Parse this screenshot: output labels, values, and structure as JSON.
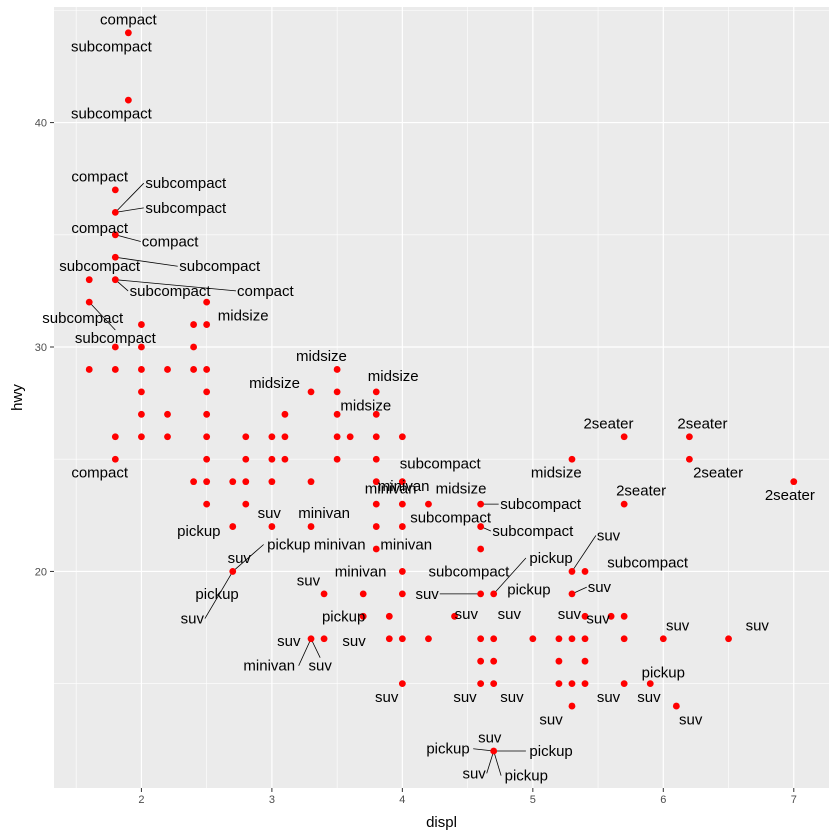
{
  "chart_data": {
    "type": "scatter",
    "title": "",
    "xlabel": "displ",
    "ylabel": "hwy",
    "xlim": [
      1.33,
      7.27
    ],
    "ylim": [
      10.35,
      45.15
    ],
    "x_ticks": [
      "2",
      "3",
      "4",
      "5",
      "6",
      "7"
    ],
    "y_ticks": [
      "20",
      "30",
      "40"
    ],
    "grid": true,
    "legend": "none",
    "colors": {
      "panel": "#ebebeb",
      "grid": "#ffffff",
      "point": "#ff0000",
      "label": "#000000",
      "leader": "#000000"
    },
    "points": [
      [
        1.9,
        44
      ],
      [
        1.9,
        41
      ],
      [
        1.8,
        37
      ],
      [
        1.8,
        36
      ],
      [
        1.8,
        35
      ],
      [
        1.6,
        33
      ],
      [
        1.8,
        34
      ],
      [
        1.8,
        33
      ],
      [
        1.6,
        32
      ],
      [
        2.0,
        31
      ],
      [
        2.5,
        32
      ],
      [
        2.4,
        31
      ],
      [
        2.5,
        31
      ],
      [
        1.6,
        29
      ],
      [
        1.8,
        29
      ],
      [
        2.0,
        29
      ],
      [
        2.2,
        29
      ],
      [
        2.4,
        29
      ],
      [
        2.5,
        29
      ],
      [
        2.4,
        30
      ],
      [
        1.8,
        30
      ],
      [
        2.0,
        30
      ],
      [
        2.0,
        28
      ],
      [
        2.0,
        27
      ],
      [
        2.0,
        26
      ],
      [
        1.8,
        26
      ],
      [
        1.8,
        25
      ],
      [
        2.2,
        27
      ],
      [
        2.2,
        26
      ],
      [
        2.5,
        28
      ],
      [
        2.5,
        27
      ],
      [
        2.5,
        26
      ],
      [
        2.5,
        25
      ],
      [
        2.5,
        24
      ],
      [
        2.5,
        23
      ],
      [
        2.4,
        24
      ],
      [
        2.7,
        24
      ],
      [
        2.7,
        22
      ],
      [
        2.8,
        26
      ],
      [
        2.8,
        25
      ],
      [
        2.8,
        24
      ],
      [
        2.8,
        23
      ],
      [
        3.0,
        26
      ],
      [
        3.0,
        25
      ],
      [
        3.0,
        24
      ],
      [
        3.0,
        22
      ],
      [
        3.1,
        27
      ],
      [
        3.1,
        26
      ],
      [
        3.1,
        25
      ],
      [
        3.3,
        28
      ],
      [
        3.3,
        24
      ],
      [
        3.3,
        22
      ],
      [
        3.5,
        29
      ],
      [
        3.5,
        28
      ],
      [
        3.5,
        27
      ],
      [
        3.5,
        26
      ],
      [
        3.5,
        25
      ],
      [
        3.6,
        26
      ],
      [
        3.8,
        28
      ],
      [
        3.8,
        27
      ],
      [
        3.8,
        26
      ],
      [
        3.8,
        25
      ],
      [
        3.8,
        24
      ],
      [
        3.8,
        23
      ],
      [
        3.8,
        22
      ],
      [
        3.8,
        21
      ],
      [
        4.0,
        26
      ],
      [
        4.0,
        24
      ],
      [
        4.0,
        23
      ],
      [
        4.0,
        22
      ],
      [
        4.0,
        20
      ],
      [
        4.0,
        19
      ],
      [
        4.0,
        17
      ],
      [
        4.0,
        15
      ],
      [
        4.2,
        23
      ],
      [
        4.6,
        23
      ],
      [
        4.6,
        22
      ],
      [
        4.6,
        21
      ],
      [
        4.6,
        19
      ],
      [
        4.6,
        17
      ],
      [
        4.6,
        16
      ],
      [
        4.6,
        15
      ],
      [
        4.7,
        19
      ],
      [
        4.7,
        17
      ],
      [
        4.7,
        16
      ],
      [
        4.7,
        15
      ],
      [
        4.7,
        12
      ],
      [
        5.3,
        25
      ],
      [
        5.3,
        20
      ],
      [
        5.3,
        19
      ],
      [
        5.3,
        17
      ],
      [
        5.3,
        15
      ],
      [
        5.3,
        14
      ],
      [
        5.4,
        20
      ],
      [
        5.4,
        18
      ],
      [
        5.4,
        17
      ],
      [
        5.4,
        16
      ],
      [
        5.4,
        15
      ],
      [
        5.7,
        26
      ],
      [
        5.7,
        23
      ],
      [
        5.7,
        18
      ],
      [
        5.7,
        17
      ],
      [
        5.7,
        15
      ],
      [
        6.2,
        26
      ],
      [
        6.2,
        25
      ],
      [
        7.0,
        24
      ],
      [
        2.7,
        20
      ],
      [
        3.4,
        19
      ],
      [
        3.3,
        17
      ],
      [
        3.4,
        17
      ],
      [
        3.7,
        19
      ],
      [
        3.7,
        18
      ],
      [
        3.9,
        18
      ],
      [
        3.9,
        17
      ],
      [
        4.2,
        17
      ],
      [
        4.4,
        18
      ],
      [
        5.0,
        17
      ],
      [
        5.2,
        17
      ],
      [
        5.2,
        16
      ],
      [
        5.2,
        15
      ],
      [
        5.6,
        18
      ],
      [
        6.0,
        17
      ],
      [
        6.5,
        17
      ],
      [
        6.1,
        14
      ],
      [
        5.9,
        15
      ]
    ],
    "annotations": [
      {
        "text": "compact",
        "x": 1.9,
        "y": 44,
        "lx": 1.9,
        "ly": 44.6,
        "leader": false
      },
      {
        "text": "subcompact",
        "x": 1.9,
        "y": 44,
        "lx": 1.77,
        "ly": 43.4,
        "leader": false
      },
      {
        "text": "subcompact",
        "x": 1.9,
        "y": 41,
        "lx": 1.77,
        "ly": 40.4,
        "leader": false
      },
      {
        "text": "compact",
        "x": 1.8,
        "y": 37,
        "lx": 1.68,
        "ly": 37.6,
        "leader": false
      },
      {
        "text": "subcompact",
        "x": 1.8,
        "y": 36,
        "lx": 2.34,
        "ly": 37.3,
        "leader": true
      },
      {
        "text": "subcompact",
        "x": 1.8,
        "y": 36,
        "lx": 2.34,
        "ly": 36.2,
        "leader": true
      },
      {
        "text": "compact",
        "x": 1.8,
        "y": 35,
        "lx": 1.68,
        "ly": 35.3,
        "leader": false
      },
      {
        "text": "compact",
        "x": 1.8,
        "y": 35,
        "lx": 2.22,
        "ly": 34.7,
        "leader": true
      },
      {
        "text": "subcompact",
        "x": 1.8,
        "y": 34,
        "lx": 1.68,
        "ly": 33.6,
        "leader": false
      },
      {
        "text": "subcompact",
        "x": 1.8,
        "y": 34,
        "lx": 2.6,
        "ly": 33.6,
        "leader": true
      },
      {
        "text": "subcompact",
        "x": 1.8,
        "y": 33,
        "lx": 2.22,
        "ly": 32.5,
        "leader": true
      },
      {
        "text": "compact",
        "x": 1.8,
        "y": 33,
        "lx": 2.95,
        "ly": 32.5,
        "leader": true
      },
      {
        "text": "subcompact",
        "x": 1.6,
        "y": 32,
        "lx": 1.55,
        "ly": 31.3,
        "leader": false
      },
      {
        "text": "subcompact",
        "x": 1.6,
        "y": 32,
        "lx": 1.8,
        "ly": 30.4,
        "leader": true
      },
      {
        "text": "midsize",
        "x": 2.5,
        "y": 32,
        "lx": 2.78,
        "ly": 31.4,
        "leader": false
      },
      {
        "text": "compact",
        "x": 1.8,
        "y": 25,
        "lx": 1.68,
        "ly": 24.4,
        "leader": false
      },
      {
        "text": "midsize",
        "x": 3.5,
        "y": 29,
        "lx": 3.38,
        "ly": 29.6,
        "leader": false
      },
      {
        "text": "midsize",
        "x": 3.3,
        "y": 28,
        "lx": 3.02,
        "ly": 28.4,
        "leader": false
      },
      {
        "text": "midsize",
        "x": 3.8,
        "y": 28,
        "lx": 3.93,
        "ly": 28.7,
        "leader": false
      },
      {
        "text": "midsize",
        "x": 3.5,
        "y": 27,
        "lx": 3.72,
        "ly": 27.4,
        "leader": false
      },
      {
        "text": "subcompact",
        "x": 4.0,
        "y": 24,
        "lx": 4.29,
        "ly": 24.8,
        "leader": false
      },
      {
        "text": "midsize",
        "x": 5.3,
        "y": 25,
        "lx": 5.18,
        "ly": 24.4,
        "leader": false
      },
      {
        "text": "2seater",
        "x": 5.7,
        "y": 26,
        "lx": 5.58,
        "ly": 26.6,
        "leader": false
      },
      {
        "text": "2seater",
        "x": 6.2,
        "y": 26,
        "lx": 6.3,
        "ly": 26.6,
        "leader": false
      },
      {
        "text": "2seater",
        "x": 6.2,
        "y": 25,
        "lx": 6.42,
        "ly": 24.4,
        "leader": false
      },
      {
        "text": "2seater",
        "x": 5.7,
        "y": 23,
        "lx": 5.83,
        "ly": 23.6,
        "leader": false
      },
      {
        "text": "2seater",
        "x": 7.0,
        "y": 24,
        "lx": 6.97,
        "ly": 23.4,
        "leader": false
      },
      {
        "text": "minivan",
        "x": 3.8,
        "y": 24,
        "lx": 4.01,
        "ly": 23.8,
        "leader": false
      },
      {
        "text": "minivan",
        "x": 3.8,
        "y": 24,
        "lx": 3.91,
        "ly": 23.7,
        "leader": false
      },
      {
        "text": "midsize",
        "x": 4.2,
        "y": 23,
        "lx": 4.45,
        "ly": 23.7,
        "leader": false
      },
      {
        "text": "subcompact",
        "x": 4.6,
        "y": 23,
        "lx": 5.06,
        "ly": 23.0,
        "leader": true
      },
      {
        "text": "subcompact",
        "x": 4.6,
        "y": 22,
        "lx": 4.37,
        "ly": 22.4,
        "leader": false
      },
      {
        "text": "subcompact",
        "x": 4.6,
        "y": 22,
        "lx": 5.0,
        "ly": 21.8,
        "leader": true
      },
      {
        "text": "pickup",
        "x": 2.7,
        "y": 22,
        "lx": 2.44,
        "ly": 21.8,
        "leader": false
      },
      {
        "text": "suv",
        "x": 2.8,
        "y": 22,
        "lx": 2.98,
        "ly": 22.6,
        "leader": false
      },
      {
        "text": "minivan",
        "x": 3.3,
        "y": 22,
        "lx": 3.4,
        "ly": 22.6,
        "leader": false
      },
      {
        "text": "pickup",
        "x": 2.7,
        "y": 20,
        "lx": 3.13,
        "ly": 21.2,
        "leader": true
      },
      {
        "text": "minivan",
        "x": 3.8,
        "y": 21,
        "lx": 3.52,
        "ly": 21.2,
        "leader": false
      },
      {
        "text": "minivan",
        "x": 3.8,
        "y": 21,
        "lx": 4.03,
        "ly": 21.2,
        "leader": false
      },
      {
        "text": "suv",
        "x": 2.7,
        "y": 20,
        "lx": 2.75,
        "ly": 20.6,
        "leader": false
      },
      {
        "text": "pickup",
        "x": 4.7,
        "y": 19,
        "lx": 5.14,
        "ly": 20.6,
        "leader": true
      },
      {
        "text": "suv",
        "x": 5.3,
        "y": 20,
        "lx": 5.58,
        "ly": 21.6,
        "leader": true
      },
      {
        "text": "subcompact",
        "x": 5.4,
        "y": 20,
        "lx": 5.88,
        "ly": 20.4,
        "leader": false
      },
      {
        "text": "minivan",
        "x": 3.8,
        "y": 20,
        "lx": 3.68,
        "ly": 20.0,
        "leader": false
      },
      {
        "text": "subcompact",
        "x": 4.7,
        "y": 19,
        "lx": 4.51,
        "ly": 20.0,
        "leader": false
      },
      {
        "text": "suv",
        "x": 5.3,
        "y": 19,
        "lx": 5.51,
        "ly": 19.3,
        "leader": true
      },
      {
        "text": "suv",
        "x": 3.4,
        "y": 19,
        "lx": 3.28,
        "ly": 19.6,
        "leader": false
      },
      {
        "text": "pickup",
        "x": 2.7,
        "y": 20,
        "lx": 2.58,
        "ly": 19.0,
        "leader": false
      },
      {
        "text": "suv",
        "x": 4.6,
        "y": 19,
        "lx": 4.19,
        "ly": 19.0,
        "leader": true
      },
      {
        "text": "pickup",
        "x": 4.7,
        "y": 19,
        "lx": 4.97,
        "ly": 19.2,
        "leader": false
      },
      {
        "text": "pickup",
        "x": 3.7,
        "y": 18,
        "lx": 3.55,
        "ly": 18.0,
        "leader": false
      },
      {
        "text": "suv",
        "x": 2.7,
        "y": 20,
        "lx": 2.39,
        "ly": 17.9,
        "leader": true
      },
      {
        "text": "suv",
        "x": 4.4,
        "y": 18,
        "lx": 4.49,
        "ly": 18.1,
        "leader": false
      },
      {
        "text": "suv",
        "x": 4.7,
        "y": 18,
        "lx": 4.82,
        "ly": 18.1,
        "leader": false
      },
      {
        "text": "suv",
        "x": 5.2,
        "y": 18,
        "lx": 5.28,
        "ly": 18.1,
        "leader": false
      },
      {
        "text": "suv",
        "x": 5.7,
        "y": 18,
        "lx": 5.5,
        "ly": 17.9,
        "leader": false
      },
      {
        "text": "suv",
        "x": 6.0,
        "y": 17,
        "lx": 6.11,
        "ly": 17.6,
        "leader": false
      },
      {
        "text": "suv",
        "x": 6.5,
        "y": 17,
        "lx": 6.72,
        "ly": 17.6,
        "leader": false
      },
      {
        "text": "suv",
        "x": 3.3,
        "y": 17,
        "lx": 3.13,
        "ly": 16.9,
        "leader": false
      },
      {
        "text": "suv",
        "x": 3.4,
        "y": 17,
        "lx": 3.63,
        "ly": 16.9,
        "leader": false
      },
      {
        "text": "minivan",
        "x": 3.3,
        "y": 17,
        "lx": 2.98,
        "ly": 15.8,
        "leader": true
      },
      {
        "text": "suv",
        "x": 3.3,
        "y": 17,
        "lx": 3.37,
        "ly": 15.8,
        "leader": true
      },
      {
        "text": "pickup",
        "x": 5.9,
        "y": 15,
        "lx": 6.0,
        "ly": 15.5,
        "leader": false
      },
      {
        "text": "suv",
        "x": 4.0,
        "y": 15,
        "lx": 3.88,
        "ly": 14.4,
        "leader": false
      },
      {
        "text": "suv",
        "x": 4.6,
        "y": 15,
        "lx": 4.48,
        "ly": 14.4,
        "leader": false
      },
      {
        "text": "suv",
        "x": 4.8,
        "y": 15,
        "lx": 4.84,
        "ly": 14.4,
        "leader": false
      },
      {
        "text": "suv",
        "x": 5.7,
        "y": 15,
        "lx": 5.58,
        "ly": 14.4,
        "leader": false
      },
      {
        "text": "suv",
        "x": 5.9,
        "y": 15,
        "lx": 5.89,
        "ly": 14.4,
        "leader": false
      },
      {
        "text": "suv",
        "x": 6.1,
        "y": 14,
        "lx": 6.21,
        "ly": 13.4,
        "leader": false
      },
      {
        "text": "suv",
        "x": 5.3,
        "y": 14,
        "lx": 5.14,
        "ly": 13.4,
        "leader": false
      },
      {
        "text": "suv",
        "x": 4.7,
        "y": 12,
        "lx": 4.67,
        "ly": 12.6,
        "leader": false
      },
      {
        "text": "pickup",
        "x": 4.7,
        "y": 12,
        "lx": 4.35,
        "ly": 12.1,
        "leader": true
      },
      {
        "text": "pickup",
        "x": 4.7,
        "y": 12,
        "lx": 5.14,
        "ly": 12.0,
        "leader": true
      },
      {
        "text": "suv",
        "x": 4.7,
        "y": 12,
        "lx": 4.55,
        "ly": 11.0,
        "leader": true
      },
      {
        "text": "pickup",
        "x": 4.7,
        "y": 12,
        "lx": 4.95,
        "ly": 10.9,
        "leader": true
      }
    ]
  }
}
